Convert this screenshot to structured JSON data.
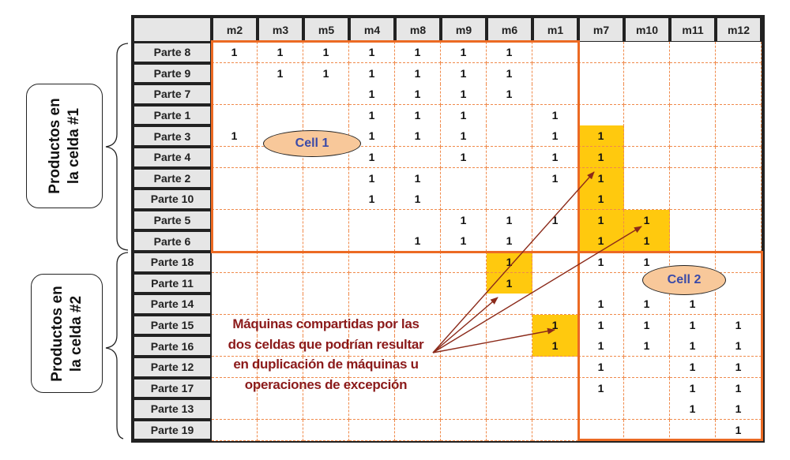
{
  "machines": [
    "m2",
    "m3",
    "m5",
    "m4",
    "m8",
    "m9",
    "m6",
    "m1",
    "m7",
    "m10",
    "m11",
    "m12"
  ],
  "rows": [
    {
      "part": "Parte 8",
      "values": [
        "1",
        "1",
        "1",
        "1",
        "1",
        "1",
        "1",
        "",
        "",
        "",
        "",
        ""
      ]
    },
    {
      "part": "Parte 9",
      "values": [
        "",
        "1",
        "1",
        "1",
        "1",
        "1",
        "1",
        "",
        "",
        "",
        "",
        ""
      ]
    },
    {
      "part": "Parte 7",
      "values": [
        "",
        "",
        "",
        "1",
        "1",
        "1",
        "1",
        "",
        "",
        "",
        "",
        ""
      ]
    },
    {
      "part": "Parte 1",
      "values": [
        "",
        "",
        "",
        "1",
        "1",
        "1",
        "",
        "1",
        "",
        "",
        "",
        ""
      ]
    },
    {
      "part": "Parte 3",
      "values": [
        "1",
        "",
        "",
        "1",
        "1",
        "1",
        "",
        "1",
        "1",
        "",
        "",
        ""
      ]
    },
    {
      "part": "Parte 4",
      "values": [
        "",
        "",
        "",
        "1",
        "",
        "1",
        "",
        "1",
        "1",
        "",
        "",
        ""
      ]
    },
    {
      "part": "Parte 2",
      "values": [
        "",
        "",
        "",
        "1",
        "1",
        "",
        "",
        "1",
        "1",
        "",
        "",
        ""
      ]
    },
    {
      "part": "Parte 10",
      "values": [
        "",
        "",
        "",
        "1",
        "1",
        "",
        "",
        "",
        "1",
        "",
        "",
        ""
      ]
    },
    {
      "part": "Parte 5",
      "values": [
        "",
        "",
        "",
        "",
        "",
        "1",
        "1",
        "1",
        "1",
        "1",
        "",
        ""
      ]
    },
    {
      "part": "Parte 6",
      "values": [
        "",
        "",
        "",
        "",
        "1",
        "1",
        "1",
        "",
        "1",
        "1",
        "",
        ""
      ]
    },
    {
      "part": "Parte 18",
      "values": [
        "",
        "",
        "",
        "",
        "",
        "",
        "1",
        "",
        "1",
        "1",
        "",
        ""
      ]
    },
    {
      "part": "Parte 11",
      "values": [
        "",
        "",
        "",
        "",
        "",
        "",
        "1",
        "",
        "",
        "",
        "",
        ""
      ]
    },
    {
      "part": "Parte 14",
      "values": [
        "",
        "",
        "",
        "",
        "",
        "",
        "",
        "",
        "1",
        "1",
        "1",
        ""
      ]
    },
    {
      "part": "Parte 15",
      "values": [
        "",
        "",
        "",
        "",
        "",
        "",
        "",
        "1",
        "1",
        "1",
        "1",
        "1"
      ]
    },
    {
      "part": "Parte 16",
      "values": [
        "",
        "",
        "",
        "",
        "",
        "",
        "",
        "1",
        "1",
        "1",
        "1",
        "1"
      ]
    },
    {
      "part": "Parte 12",
      "values": [
        "",
        "",
        "",
        "",
        "",
        "",
        "",
        "",
        "1",
        "",
        "1",
        "1"
      ]
    },
    {
      "part": "Parte 17",
      "values": [
        "",
        "",
        "",
        "",
        "",
        "",
        "",
        "",
        "1",
        "",
        "1",
        "1"
      ]
    },
    {
      "part": "Parte 13",
      "values": [
        "",
        "",
        "",
        "",
        "",
        "",
        "",
        "",
        "",
        "",
        "1",
        "1"
      ]
    },
    {
      "part": "Parte 19",
      "values": [
        "",
        "",
        "",
        "",
        "",
        "",
        "",
        "",
        "",
        "",
        "",
        "1"
      ]
    }
  ],
  "highlighted_cells": [
    {
      "part": "Parte 3",
      "machine": "m7"
    },
    {
      "part": "Parte 4",
      "machine": "m7"
    },
    {
      "part": "Parte 2",
      "machine": "m7"
    },
    {
      "part": "Parte 10",
      "machine": "m7"
    },
    {
      "part": "Parte 5",
      "machine": "m7"
    },
    {
      "part": "Parte 6",
      "machine": "m7"
    },
    {
      "part": "Parte 5",
      "machine": "m10"
    },
    {
      "part": "Parte 6",
      "machine": "m10"
    },
    {
      "part": "Parte 18",
      "machine": "m6"
    },
    {
      "part": "Parte 11",
      "machine": "m6"
    },
    {
      "part": "Parte 15",
      "machine": "m1"
    },
    {
      "part": "Parte 16",
      "machine": "m1"
    }
  ],
  "cell1_label": "Cell 1",
  "cell2_label": "Cell 2",
  "group1_label": [
    "Productos en",
    "la celda #1"
  ],
  "group2_label": [
    "Productos en",
    "la celda #2"
  ],
  "note_lines": [
    "Máquinas compartidas por las",
    "dos celdas que podrían resultar",
    "en duplicación de máquinas u",
    "operaciones de excepción"
  ],
  "colors": {
    "cell_border": "#ec6a23",
    "highlight": "#ffc90e",
    "note": "#8b1a1a",
    "oval_fill": "#f8c89a",
    "oval_text": "#3a4aa8",
    "arrow": "#8b2a1a"
  }
}
